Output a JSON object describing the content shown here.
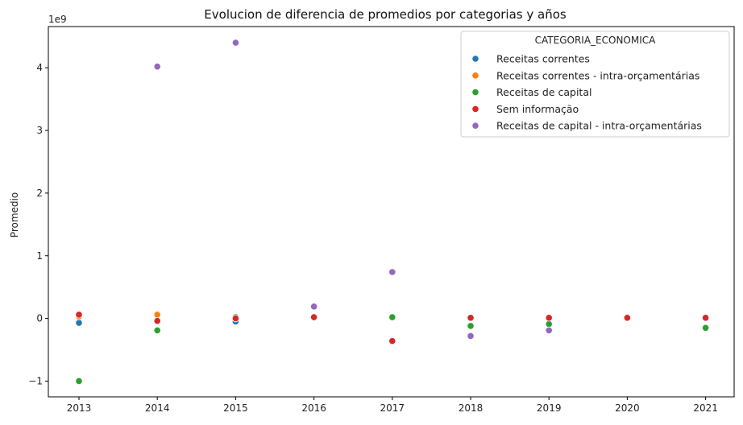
{
  "chart_data": {
    "type": "scatter",
    "title": "Evolucion de diferencia de promedios por categorias y años",
    "xlabel": "",
    "ylabel": "Promedio",
    "y_offset_label": "1e9",
    "x_categories": [
      "2013",
      "2014",
      "2015",
      "2016",
      "2017",
      "2018",
      "2019",
      "2020",
      "2021"
    ],
    "y_ticks": [
      -1,
      0,
      1,
      2,
      3,
      4
    ],
    "y_tick_labels": [
      "−1",
      "0",
      "1",
      "2",
      "3",
      "4"
    ],
    "ylim": [
      -1.25,
      4.6
    ],
    "grid": false,
    "legend": {
      "title": "CATEGORIA_ECONOMICA",
      "placement": "top-right"
    },
    "series": [
      {
        "name": "Receitas correntes",
        "color": "#1f77b4",
        "points": [
          [
            "2013",
            -0.07
          ],
          [
            "2014",
            -0.03
          ],
          [
            "2015",
            -0.05
          ],
          [
            "2016",
            0.01
          ],
          [
            "2017",
            0.01
          ],
          [
            "2018",
            0.01
          ],
          [
            "2019",
            0.01
          ],
          [
            "2020",
            0.02
          ],
          [
            "2021",
            0.02
          ]
        ]
      },
      {
        "name": "Receitas correntes - intra-orçamentárias",
        "color": "#ff7f0e",
        "points": [
          [
            "2013",
            0.03
          ],
          [
            "2014",
            0.06
          ],
          [
            "2015",
            0.02
          ],
          [
            "2016",
            0.01
          ],
          [
            "2017",
            0.01
          ],
          [
            "2018",
            0.01
          ],
          [
            "2019",
            0.01
          ],
          [
            "2020",
            0.02
          ],
          [
            "2021",
            0.02
          ]
        ]
      },
      {
        "name": "Receitas de capital",
        "color": "#2ca02c",
        "points": [
          [
            "2013",
            -1.0
          ],
          [
            "2014",
            -0.19
          ],
          [
            "2015",
            0.02
          ],
          [
            "2016",
            0.01
          ],
          [
            "2017",
            0.02
          ],
          [
            "2018",
            -0.12
          ],
          [
            "2019",
            -0.09
          ],
          [
            "2020",
            0.02
          ],
          [
            "2021",
            -0.15
          ]
        ]
      },
      {
        "name": "Sem informação",
        "color": "#d62728",
        "points": [
          [
            "2013",
            0.06
          ],
          [
            "2014",
            -0.04
          ],
          [
            "2015",
            0.0
          ],
          [
            "2016",
            0.02
          ],
          [
            "2017",
            -0.36
          ],
          [
            "2018",
            0.01
          ],
          [
            "2019",
            0.01
          ],
          [
            "2020",
            0.01
          ],
          [
            "2021",
            0.01
          ]
        ]
      },
      {
        "name": "Receitas de capital - intra-orçamentárias",
        "color": "#9467bd",
        "points": [
          [
            "2014",
            4.02
          ],
          [
            "2015",
            4.4
          ],
          [
            "2016",
            0.19
          ],
          [
            "2017",
            0.74
          ],
          [
            "2018",
            -0.28
          ],
          [
            "2019",
            -0.19
          ]
        ]
      }
    ]
  }
}
